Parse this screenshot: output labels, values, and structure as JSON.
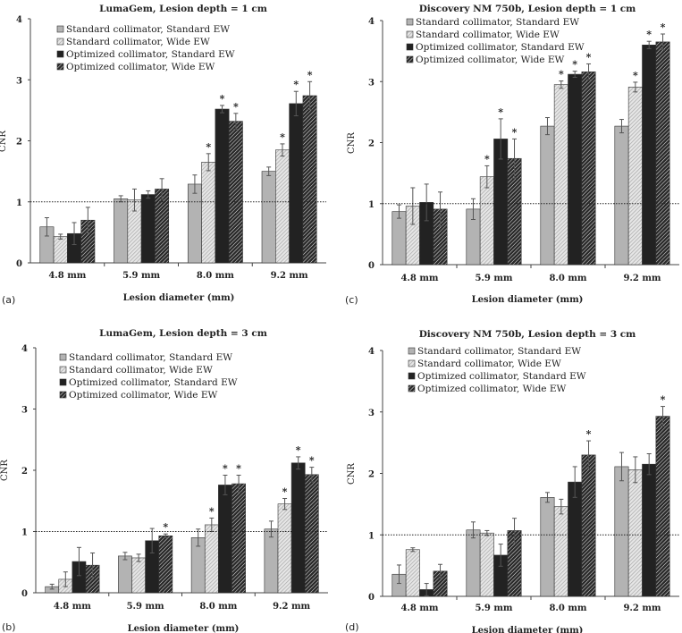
{
  "chart_data": [
    {
      "type": "bar",
      "panel_label": "(a)",
      "title": "LumaGem, Lesion depth = 1 cm",
      "xlabel": "Lesion diameter (mm)",
      "ylabel": "CNR",
      "ylim": [
        0,
        4
      ],
      "yticks": [
        "0",
        "1",
        "2",
        "3",
        "4"
      ],
      "reference_line": 1,
      "legend_position": "top-left",
      "categories": [
        "4.8 mm",
        "5.9 mm",
        "8.0 mm",
        "9.2 mm"
      ],
      "series": [
        {
          "name": "Standard collimator, Standard EW",
          "values": [
            0.59,
            1.05,
            1.29,
            1.5
          ],
          "errors": [
            0.15,
            0.05,
            0.15,
            0.07
          ],
          "significant": [
            false,
            false,
            false,
            false
          ]
        },
        {
          "name": "Standard collimator, Wide EW",
          "values": [
            0.43,
            1.03,
            1.65,
            1.85
          ],
          "errors": [
            0.04,
            0.18,
            0.14,
            0.1
          ],
          "significant": [
            false,
            false,
            true,
            true
          ]
        },
        {
          "name": "Optimized collimator, Standard EW",
          "values": [
            0.48,
            1.12,
            2.52,
            2.61
          ],
          "errors": [
            0.18,
            0.06,
            0.06,
            0.2
          ],
          "significant": [
            false,
            false,
            true,
            true
          ]
        },
        {
          "name": "Optimized collimator, Wide EW",
          "values": [
            0.7,
            1.21,
            2.32,
            2.74
          ],
          "errors": [
            0.21,
            0.17,
            0.13,
            0.23
          ],
          "significant": [
            false,
            false,
            true,
            true
          ]
        }
      ]
    },
    {
      "type": "bar",
      "panel_label": "(c)",
      "title": "Discovery NM 750b, Lesion depth = 1 cm",
      "xlabel": "Lesion diameter (mm)",
      "ylabel": "CNR",
      "ylim": [
        0,
        4
      ],
      "yticks": [
        "0",
        "1",
        "2",
        "3",
        "4"
      ],
      "reference_line": 1,
      "legend_position": "top-left",
      "categories": [
        "4.8 mm",
        "5.9 mm",
        "8.0 mm",
        "9.2 mm"
      ],
      "series": [
        {
          "name": "Standard collimator, Standard EW",
          "values": [
            0.87,
            0.91,
            2.27,
            2.27
          ],
          "errors": [
            0.11,
            0.17,
            0.14,
            0.11
          ],
          "significant": [
            false,
            false,
            false,
            false
          ]
        },
        {
          "name": "Standard collimator, Wide EW",
          "values": [
            0.96,
            1.44,
            2.95,
            2.91
          ],
          "errors": [
            0.3,
            0.18,
            0.06,
            0.08
          ],
          "significant": [
            false,
            true,
            true,
            true
          ]
        },
        {
          "name": "Optimized collimator, Standard EW",
          "values": [
            1.02,
            2.06,
            3.12,
            3.6
          ],
          "errors": [
            0.3,
            0.33,
            0.05,
            0.06
          ],
          "significant": [
            false,
            true,
            true,
            true
          ]
        },
        {
          "name": "Optimized collimator, Wide EW",
          "values": [
            0.91,
            1.74,
            3.16,
            3.65
          ],
          "errors": [
            0.28,
            0.32,
            0.13,
            0.13
          ],
          "significant": [
            false,
            true,
            true,
            true
          ]
        }
      ]
    },
    {
      "type": "bar",
      "panel_label": "(b)",
      "title": "LumaGem, Lesion depth = 3 cm",
      "xlabel": "Lesion diameter (mm)",
      "ylabel": "CNR",
      "ylim": [
        0,
        4
      ],
      "yticks": [
        "0",
        "1",
        "2",
        "3",
        "4"
      ],
      "reference_line": 1,
      "legend_position": "top-left",
      "categories": [
        "4.8 mm",
        "5.9 mm",
        "8.0 mm",
        "9.2 mm"
      ],
      "series": [
        {
          "name": "Standard collimator, Standard EW",
          "values": [
            0.1,
            0.6,
            0.9,
            1.04
          ],
          "errors": [
            0.04,
            0.06,
            0.14,
            0.13
          ],
          "significant": [
            false,
            false,
            false,
            false
          ]
        },
        {
          "name": "Standard collimator, Wide EW",
          "values": [
            0.22,
            0.57,
            1.11,
            1.45
          ],
          "errors": [
            0.12,
            0.06,
            0.11,
            0.09
          ],
          "significant": [
            false,
            false,
            true,
            true
          ]
        },
        {
          "name": "Optimized collimator, Standard EW",
          "values": [
            0.51,
            0.85,
            1.76,
            2.12
          ],
          "errors": [
            0.23,
            0.2,
            0.16,
            0.1
          ],
          "significant": [
            false,
            false,
            true,
            true
          ]
        },
        {
          "name": "Optimized collimator, Wide EW",
          "values": [
            0.45,
            0.93,
            1.78,
            1.93
          ],
          "errors": [
            0.2,
            0.03,
            0.14,
            0.12
          ],
          "significant": [
            false,
            true,
            true,
            true
          ]
        }
      ]
    },
    {
      "type": "bar",
      "panel_label": "(d)",
      "title": "Discovery NM 750b, Lesion depth = 3 cm",
      "xlabel": "Lesion diameter (mm)",
      "ylabel": "CNR",
      "ylim": [
        0,
        4
      ],
      "yticks": [
        "0",
        "1",
        "2",
        "3",
        "4"
      ],
      "reference_line": 1,
      "legend_position": "top-left",
      "categories": [
        "4.8 mm",
        "5.9 mm",
        "8.0 mm",
        "9.2 mm"
      ],
      "series": [
        {
          "name": "Standard collimator, Standard EW",
          "values": [
            0.36,
            1.08,
            1.61,
            2.11
          ],
          "errors": [
            0.15,
            0.13,
            0.08,
            0.23
          ],
          "significant": [
            false,
            false,
            false,
            false
          ]
        },
        {
          "name": "Standard collimator, Wide EW",
          "values": [
            0.76,
            1.03,
            1.46,
            2.06
          ],
          "errors": [
            0.03,
            0.04,
            0.12,
            0.21
          ],
          "significant": [
            false,
            false,
            false,
            false
          ]
        },
        {
          "name": "Optimized collimator, Standard EW",
          "values": [
            0.11,
            0.67,
            1.86,
            2.15
          ],
          "errors": [
            0.1,
            0.18,
            0.25,
            0.17
          ],
          "significant": [
            false,
            false,
            false,
            false
          ]
        },
        {
          "name": "Optimized collimator, Wide EW",
          "values": [
            0.41,
            1.07,
            2.3,
            2.93
          ],
          "errors": [
            0.11,
            0.2,
            0.23,
            0.16
          ],
          "significant": [
            false,
            false,
            true,
            true
          ]
        }
      ]
    }
  ],
  "significance_marker": "*",
  "colors": {
    "standard_standard": "#b3b3b3",
    "standard_wide_bg": "#e6e6e6",
    "standard_wide_hatch": "#b0b0b0",
    "optimized_standard": "#222222",
    "optimized_wide_bg": "#2a2a2a",
    "optimized_wide_hatch": "#ffffff",
    "error_bar": "#555555"
  }
}
